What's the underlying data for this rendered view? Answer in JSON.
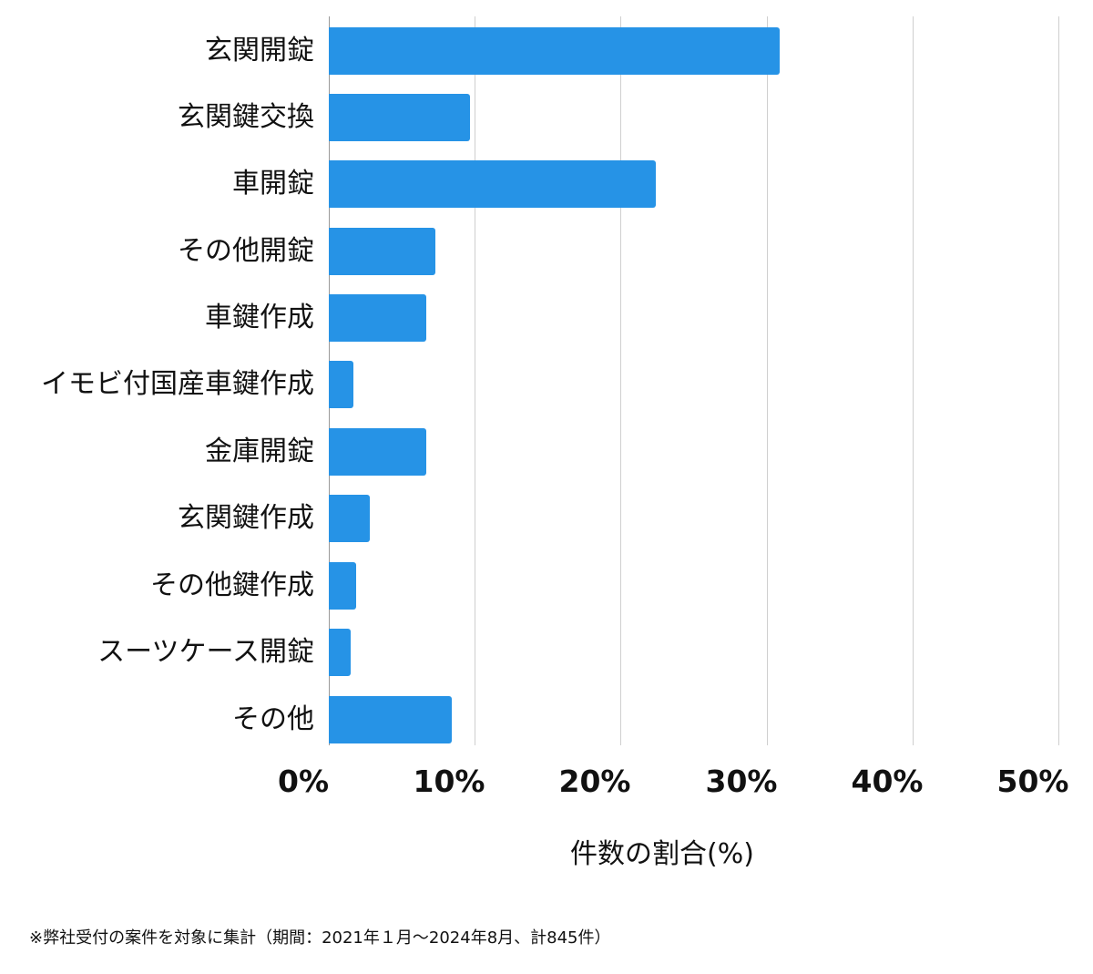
{
  "chart_data": {
    "type": "bar",
    "orientation": "horizontal",
    "title": "",
    "categories": [
      "玄関開錠",
      "玄関鍵交換",
      "車開錠",
      "その他開錠",
      "車鍵作成",
      "イモビ付国産車鍵作成",
      "金庫開錠",
      "玄関鍵作成",
      "その他鍵作成",
      "スーツケース開錠",
      "その他"
    ],
    "values": [
      30.9,
      9.7,
      22.4,
      7.3,
      6.7,
      1.7,
      6.7,
      2.8,
      1.9,
      1.5,
      8.4
    ],
    "xlabel": "件数の割合(%)",
    "ylabel": "",
    "xlim": [
      0,
      50
    ],
    "xticks": [
      "0%",
      "10%",
      "20%",
      "30%",
      "40%",
      "50%"
    ],
    "grid": true,
    "legend": null,
    "bar_color": "#2693e6",
    "footnote": "※弊社受付の案件を対象に集計（期間：2021年１月～2024年8月、計845件）"
  },
  "axis": {
    "xlabel": "件数の割合(%)",
    "ticks": [
      "0%",
      "10%",
      "20%",
      "30%",
      "40%",
      "50%"
    ]
  },
  "footnote": "※弊社受付の案件を対象に集計（期間：2021年１月～2024年8月、計845件）"
}
